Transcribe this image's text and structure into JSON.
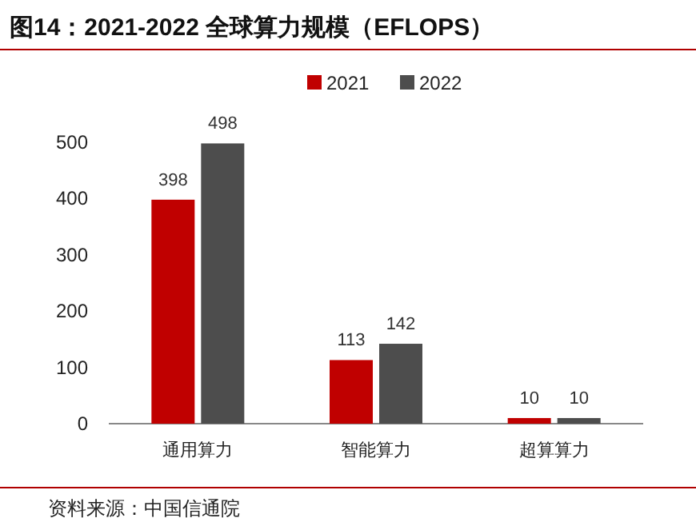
{
  "chart_data": {
    "type": "bar",
    "title": "图14：2021-2022 全球算力规模（EFLOPS）",
    "categories": [
      "通用算力",
      "智能算力",
      "超算算力"
    ],
    "series": [
      {
        "name": "2021",
        "color": "#c00000",
        "values": [
          398,
          113,
          10
        ]
      },
      {
        "name": "2022",
        "color": "#4d4d4d",
        "values": [
          498,
          142,
          10
        ]
      }
    ],
    "ylim": [
      0,
      500
    ],
    "yticks": [
      0,
      100,
      200,
      300,
      400,
      500
    ],
    "data_labels": true,
    "legend": "top",
    "grid": false,
    "annotations": [
      "资料来源：中国信通院"
    ]
  }
}
